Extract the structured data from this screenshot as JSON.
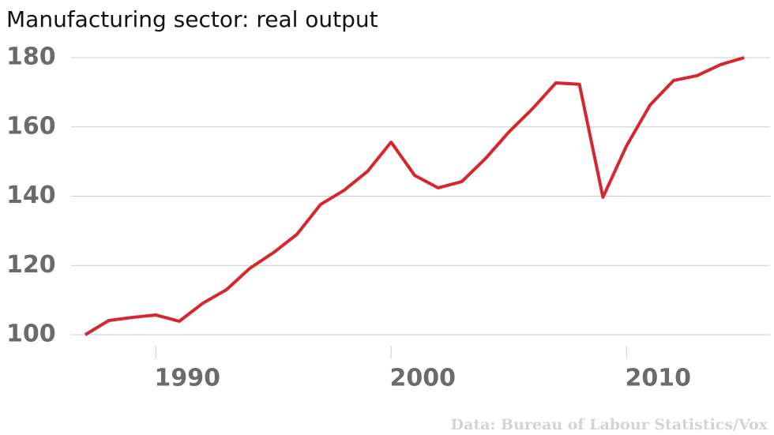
{
  "chart_data": {
    "type": "line",
    "title": "Manufacturing sector: real output",
    "source": "Data: Bureau of Labour Statistics/Vox",
    "x": [
      1987,
      1988,
      1989,
      1990,
      1991,
      1992,
      1993,
      1994,
      1995,
      1996,
      1997,
      1998,
      1999,
      2000,
      2001,
      2002,
      2003,
      2004,
      2005,
      2006,
      2007,
      2008,
      2009,
      2010,
      2011,
      2012,
      2013,
      2014,
      2015
    ],
    "series": [
      {
        "name": "Real output",
        "color": "#d7262e",
        "values": [
          100,
          104.1,
          105,
          105.7,
          103.9,
          109.1,
          113,
          119.2,
          123.7,
          129,
          137.6,
          141.7,
          147.2,
          155.6,
          146,
          142.4,
          144.2,
          150.8,
          158.5,
          165.2,
          172.7,
          172.3,
          139.7,
          154.5,
          166.3,
          173.4,
          174.8,
          178,
          180
        ]
      }
    ],
    "xlim": [
      1986.4,
      2016.1
    ],
    "xticks": [
      1990,
      2000,
      2010
    ],
    "ylim": [
      100,
      180
    ],
    "yticks": [
      100,
      120,
      140,
      160,
      180
    ],
    "grid": true
  }
}
